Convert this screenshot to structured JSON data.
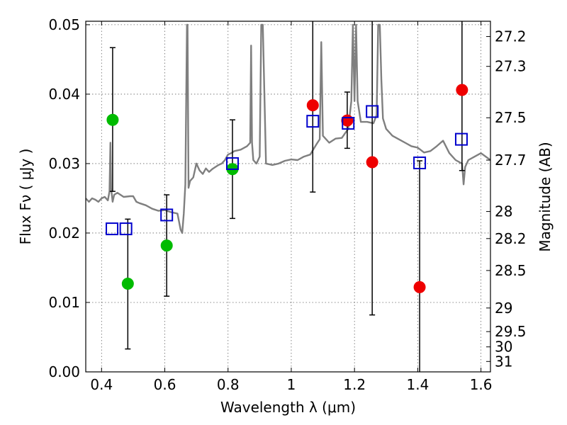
{
  "chart_data": {
    "type": "scatter",
    "title": "",
    "xlabel": "Wavelength  λ (μm)",
    "ylabel": "Flux  Fν  ( μJy )",
    "y2label": "Magnitude (AB)",
    "xlim": [
      0.35,
      1.63
    ],
    "ylim": [
      0.0,
      0.0505
    ],
    "grid": true,
    "x_ticks": [
      0.4,
      0.6,
      0.8,
      1.0,
      1.2,
      1.4,
      1.6
    ],
    "x_tick_labels": [
      "0.4",
      "0.6",
      "0.8",
      "1",
      "1.2",
      "1.4",
      "1.6"
    ],
    "y_ticks": [
      0.0,
      0.01,
      0.02,
      0.03,
      0.04,
      0.05
    ],
    "y_tick_labels": [
      "0.00",
      "0.01",
      "0.02",
      "0.03",
      "0.04",
      "0.05"
    ],
    "mag_ticks": [
      {
        "label": "27.2",
        "flux": 0.0483
      },
      {
        "label": "27.3",
        "flux": 0.044
      },
      {
        "label": "27.5",
        "flux": 0.0366
      },
      {
        "label": "27.7",
        "flux": 0.0305
      },
      {
        "label": "28",
        "flux": 0.0231
      },
      {
        "label": "28.2",
        "flux": 0.0192
      },
      {
        "label": "28.5",
        "flux": 0.0146
      },
      {
        "label": "29",
        "flux": 0.0092
      },
      {
        "label": "29.5",
        "flux": 0.0058
      },
      {
        "label": "30",
        "flux": 0.0036
      },
      {
        "label": "31",
        "flux": 0.0015
      }
    ],
    "colors": {
      "green": "#00bb00",
      "red": "#ee0000",
      "blue": "#0000cc",
      "spectrum": "#7f7f7f",
      "errorbar": "#000000"
    },
    "series": [
      {
        "name": "green-points",
        "marker": "circle",
        "color": "green",
        "points": [
          {
            "x": 0.435,
            "y": 0.0363,
            "ylo": 0.026,
            "yhi": 0.0467
          },
          {
            "x": 0.483,
            "y": 0.0127,
            "ylo": 0.0033,
            "yhi": 0.022
          },
          {
            "x": 0.606,
            "y": 0.0182,
            "ylo": 0.0109,
            "yhi": 0.0255
          },
          {
            "x": 0.814,
            "y": 0.0292,
            "ylo": 0.0221,
            "yhi": 0.0363
          }
        ]
      },
      {
        "name": "red-points",
        "marker": "circle",
        "color": "red",
        "points": [
          {
            "x": 1.068,
            "y": 0.0384,
            "ylo": 0.0259,
            "yhi": 0.0505
          },
          {
            "x": 1.177,
            "y": 0.0362,
            "ylo": 0.0322,
            "yhi": 0.0403
          },
          {
            "x": 1.256,
            "y": 0.0302,
            "ylo": 0.0082,
            "yhi": 0.0505
          },
          {
            "x": 1.406,
            "y": 0.0122,
            "ylo": 0.0,
            "yhi": 0.0304
          },
          {
            "x": 1.54,
            "y": 0.0406,
            "ylo": 0.029,
            "yhi": 0.0505
          }
        ]
      },
      {
        "name": "blue-squares",
        "marker": "square",
        "color": "blue",
        "points": [
          {
            "x": 0.433,
            "y": 0.0206
          },
          {
            "x": 0.477,
            "y": 0.0206
          },
          {
            "x": 0.606,
            "y": 0.0226
          },
          {
            "x": 0.814,
            "y": 0.03
          },
          {
            "x": 1.068,
            "y": 0.0361
          },
          {
            "x": 1.18,
            "y": 0.0358
          },
          {
            "x": 1.256,
            "y": 0.0375
          },
          {
            "x": 1.406,
            "y": 0.0301
          },
          {
            "x": 1.538,
            "y": 0.0335
          }
        ]
      }
    ],
    "spectrum": {
      "name": "model-spectrum",
      "color": "spectrum",
      "x": [
        0.35,
        0.36,
        0.37,
        0.38,
        0.39,
        0.4,
        0.41,
        0.42,
        0.425,
        0.428,
        0.43,
        0.435,
        0.44,
        0.45,
        0.47,
        0.49,
        0.5,
        0.51,
        0.52,
        0.54,
        0.56,
        0.58,
        0.6,
        0.62,
        0.64,
        0.65,
        0.655,
        0.66,
        0.665,
        0.67,
        0.672,
        0.675,
        0.68,
        0.69,
        0.7,
        0.71,
        0.72,
        0.73,
        0.74,
        0.75,
        0.76,
        0.77,
        0.78,
        0.79,
        0.8,
        0.81,
        0.82,
        0.84,
        0.86,
        0.87,
        0.873,
        0.876,
        0.88,
        0.89,
        0.9,
        0.905,
        0.91,
        0.92,
        0.94,
        0.96,
        0.98,
        1.0,
        1.02,
        1.04,
        1.06,
        1.08,
        1.09,
        1.095,
        1.1,
        1.12,
        1.14,
        1.16,
        1.18,
        1.19,
        1.195,
        1.2,
        1.205,
        1.21,
        1.22,
        1.24,
        1.26,
        1.27,
        1.275,
        1.28,
        1.285,
        1.29,
        1.3,
        1.32,
        1.34,
        1.36,
        1.38,
        1.4,
        1.42,
        1.44,
        1.46,
        1.48,
        1.5,
        1.52,
        1.54,
        1.545,
        1.55,
        1.56,
        1.58,
        1.6,
        1.63
      ],
      "y": [
        0.025,
        0.0245,
        0.025,
        0.0248,
        0.0245,
        0.025,
        0.0252,
        0.0247,
        0.026,
        0.033,
        0.0265,
        0.0245,
        0.0255,
        0.0258,
        0.0252,
        0.0253,
        0.0253,
        0.0245,
        0.0243,
        0.024,
        0.0235,
        0.0232,
        0.0233,
        0.023,
        0.0228,
        0.0205,
        0.02,
        0.0228,
        0.027,
        0.05,
        0.05,
        0.0265,
        0.0275,
        0.028,
        0.03,
        0.029,
        0.0285,
        0.0293,
        0.0288,
        0.0292,
        0.0295,
        0.0298,
        0.03,
        0.0305,
        0.0313,
        0.0315,
        0.0318,
        0.032,
        0.0325,
        0.033,
        0.047,
        0.033,
        0.0305,
        0.03,
        0.031,
        0.05,
        0.05,
        0.03,
        0.0298,
        0.03,
        0.0304,
        0.0306,
        0.0305,
        0.031,
        0.0313,
        0.0328,
        0.0335,
        0.0475,
        0.034,
        0.033,
        0.0336,
        0.0337,
        0.035,
        0.039,
        0.05,
        0.039,
        0.05,
        0.039,
        0.036,
        0.036,
        0.0358,
        0.037,
        0.05,
        0.05,
        0.042,
        0.0365,
        0.035,
        0.034,
        0.0335,
        0.033,
        0.0325,
        0.0323,
        0.0316,
        0.0318,
        0.0325,
        0.0333,
        0.0315,
        0.0305,
        0.03,
        0.027,
        0.0295,
        0.0305,
        0.031,
        0.0315,
        0.0305
      ]
    }
  }
}
